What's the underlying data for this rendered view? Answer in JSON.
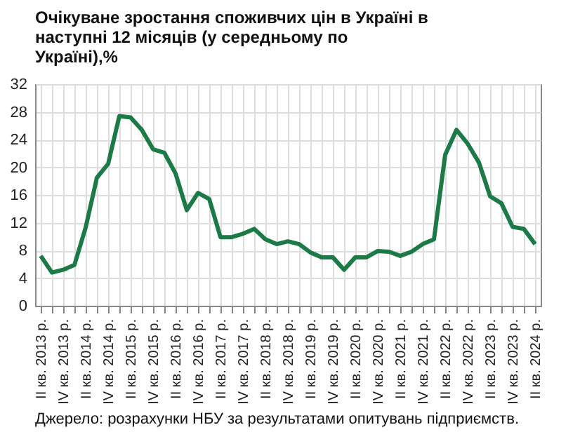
{
  "chart_data": {
    "type": "line",
    "title": "Очікуване зростання споживчих цін в Україні в наступні 12 місяців (у середньому по Україні),%",
    "categories": [
      "II кв. 2013 р.",
      null,
      "IV кв. 2013 р.",
      null,
      "II кв. 2014 р.",
      null,
      "IV кв. 2014 р.",
      null,
      "II кв. 2015 р.",
      null,
      "IV кв. 2015 р.",
      null,
      "II кв. 2016 р.",
      null,
      "IV кв. 2016 р.",
      null,
      "II кв. 2017 р.",
      null,
      "IV кв. 2017 р.",
      null,
      "II кв. 2018 р.",
      null,
      "IV кв. 2018 р.",
      null,
      "II кв. 2019 р.",
      null,
      "IV кв. 2019 р.",
      null,
      "II кв. 2020 р.",
      null,
      "IV кв. 2020 р.",
      null,
      "II кв. 2021 р.",
      null,
      "IV кв. 2021 р.",
      null,
      "II кв. 2022 р.",
      null,
      "IV кв. 2022 р.",
      null,
      "II кв. 2023 р.",
      null,
      "IV кв. 2023 р.",
      null,
      "II кв. 2024 р."
    ],
    "series": [
      {
        "color": "#1b7a45",
        "values": [
          7.2,
          4.8,
          5.2,
          5.9,
          11.3,
          18.5,
          20.5,
          27.4,
          27.2,
          25.4,
          22.6,
          22.1,
          19.1,
          13.8,
          16.3,
          15.4,
          9.9,
          9.9,
          10.4,
          11.1,
          9.6,
          8.9,
          9.3,
          8.9,
          7.7,
          7.0,
          7.0,
          5.2,
          7.0,
          7.0,
          7.9,
          7.8,
          7.2,
          7.8,
          8.9,
          9.6,
          21.8,
          25.4,
          23.4,
          20.7,
          15.8,
          14.8,
          11.4,
          11.1,
          8.9
        ]
      }
    ],
    "ylim": [
      0,
      32
    ],
    "yticks": [
      0,
      4,
      8,
      12,
      16,
      20,
      24,
      28,
      32
    ],
    "grid": true,
    "marker": "none",
    "line_style": "solid",
    "annotations": [
      "Джерело: розрахунки НБУ за результатами опитувань підприємств."
    ]
  }
}
